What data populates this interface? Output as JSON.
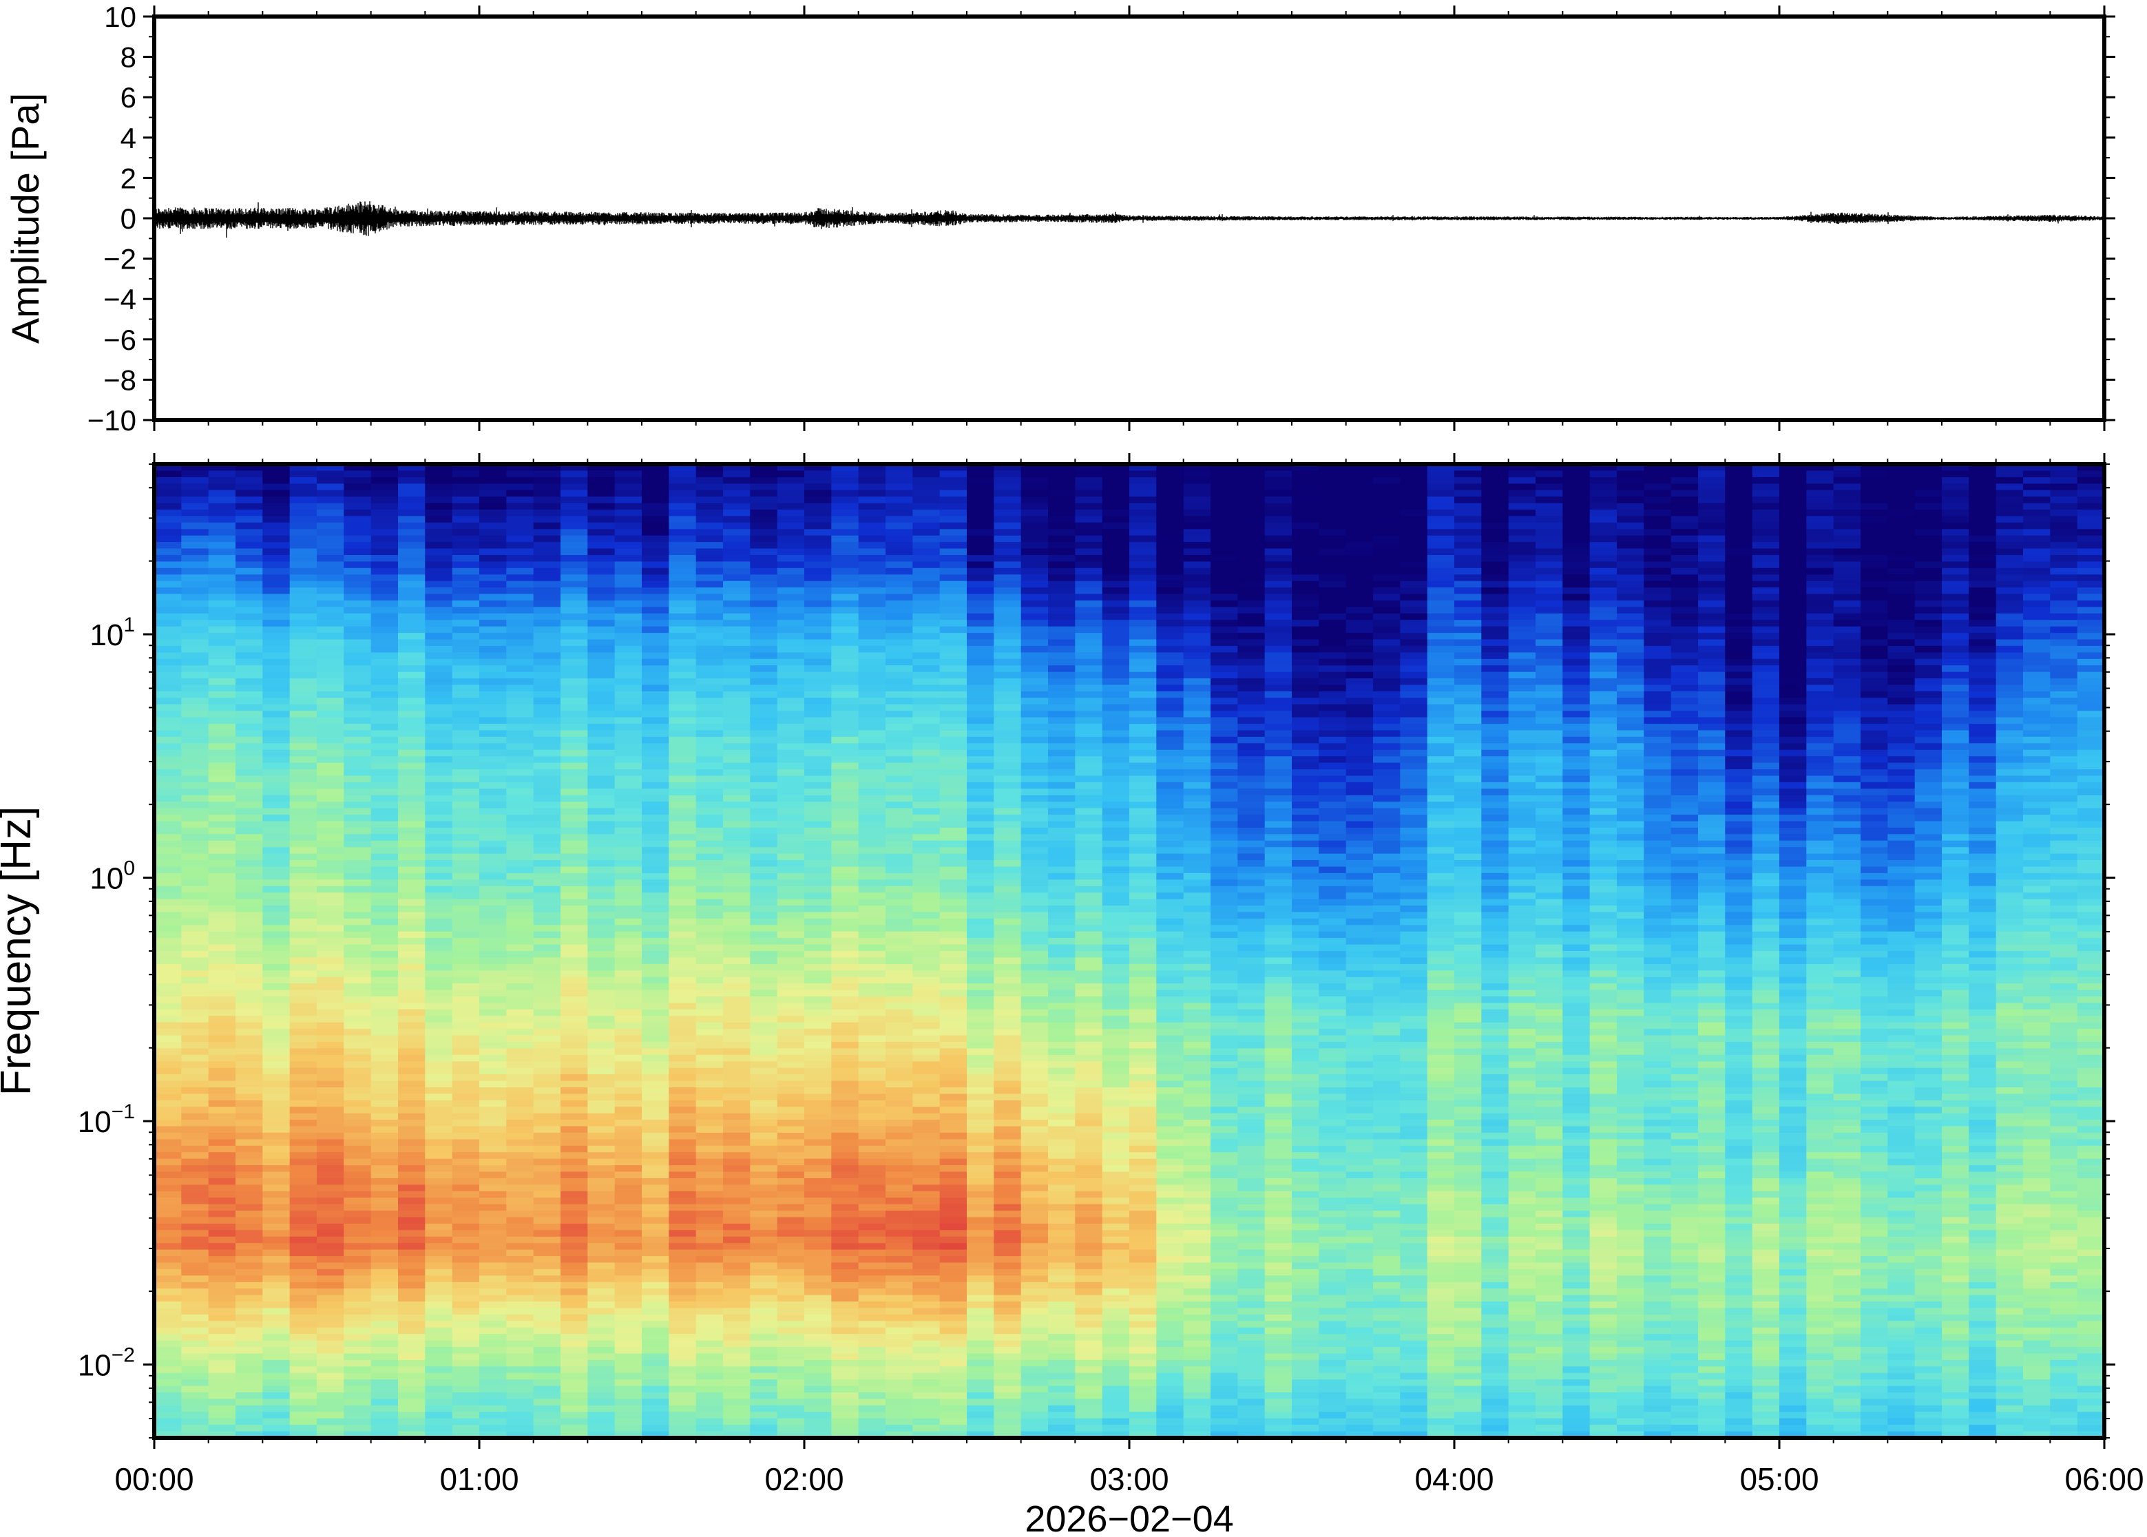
{
  "chart_data": [
    {
      "type": "line",
      "panel": "waveform",
      "ylabel": "Amplitude [Pa]",
      "ylim": [
        -10,
        10
      ],
      "yticks": [
        "10",
        "8",
        "6",
        "4",
        "2",
        "0",
        "−2",
        "−4",
        "−6",
        "−8",
        "−10"
      ],
      "ytick_values": [
        10,
        8,
        6,
        4,
        2,
        0,
        -2,
        -4,
        -6,
        -8,
        -10
      ],
      "xlim_hours": [
        0,
        6
      ],
      "series": [
        {
          "x_hours": [
            0,
            0.25,
            0.5,
            0.66,
            0.75,
            1.0,
            1.25,
            1.5,
            1.75,
            2.0,
            2.05,
            2.25,
            2.45,
            2.5,
            2.75,
            2.95,
            3.0,
            3.25,
            3.5,
            4.0,
            4.5,
            5.0,
            5.18,
            5.5,
            5.85,
            6.0
          ],
          "envelope": [
            0.45,
            0.45,
            0.42,
            0.75,
            0.35,
            0.3,
            0.28,
            0.25,
            0.22,
            0.25,
            0.45,
            0.2,
            0.35,
            0.18,
            0.15,
            0.2,
            0.12,
            0.1,
            0.08,
            0.08,
            0.07,
            0.06,
            0.25,
            0.06,
            0.15,
            0.08
          ]
        }
      ],
      "grid": false
    },
    {
      "type": "heatmap",
      "panel": "spectrogram",
      "ylabel": "Frequency [Hz]",
      "xlabel": "2026−02−04",
      "yscale": "log",
      "ylim": [
        0.005,
        50
      ],
      "yticks": [
        {
          "base": "10",
          "exp": "1",
          "value": 10
        },
        {
          "base": "10",
          "exp": "0",
          "value": 1
        },
        {
          "base": "10",
          "exp": "−1",
          "value": 0.1
        },
        {
          "base": "10",
          "exp": "−2",
          "value": 0.01
        }
      ],
      "xticks": [
        "00:00",
        "01:00",
        "02:00",
        "03:00",
        "04:00",
        "05:00",
        "06:00"
      ],
      "xtick_values_hours": [
        0,
        1,
        2,
        3,
        4,
        5,
        6
      ],
      "xlim_hours": [
        0,
        6
      ],
      "colormap": [
        "#0b0074",
        "#0f2fd0",
        "#1f8ef0",
        "#38c4f2",
        "#61e3df",
        "#a6f29a",
        "#e9f291",
        "#f6c864",
        "#f08a44",
        "#e2473b"
      ],
      "time_hours": [
        0,
        0.5,
        1,
        1.5,
        2,
        2.5,
        2.75,
        3,
        3.25,
        3.5,
        3.75,
        4,
        4.25,
        4.5,
        4.75,
        5,
        5.25,
        5.5,
        5.75,
        6
      ],
      "log_frequency_hz": [
        -2.3,
        -2,
        -1.5,
        -1.2,
        -1,
        -0.6,
        0,
        0.5,
        1,
        1.3,
        1.7
      ],
      "levels": [
        [
          0.45,
          0.45,
          0.45,
          0.45,
          0.45,
          0.45,
          0.42,
          0.4,
          0.38,
          0.38,
          0.38,
          0.38,
          0.38,
          0.38,
          0.38,
          0.38,
          0.38,
          0.38,
          0.38,
          0.38
        ],
        [
          0.58,
          0.58,
          0.57,
          0.57,
          0.57,
          0.58,
          0.57,
          0.6,
          0.5,
          0.5,
          0.48,
          0.5,
          0.48,
          0.48,
          0.46,
          0.48,
          0.48,
          0.47,
          0.47,
          0.48
        ],
        [
          0.9,
          0.92,
          0.9,
          0.88,
          0.9,
          0.92,
          0.88,
          0.82,
          0.6,
          0.55,
          0.55,
          0.56,
          0.56,
          0.58,
          0.55,
          0.56,
          0.56,
          0.56,
          0.56,
          0.6
        ],
        [
          0.88,
          0.87,
          0.86,
          0.84,
          0.86,
          0.84,
          0.8,
          0.74,
          0.55,
          0.5,
          0.5,
          0.5,
          0.5,
          0.5,
          0.48,
          0.48,
          0.5,
          0.48,
          0.5,
          0.52
        ],
        [
          0.8,
          0.79,
          0.78,
          0.77,
          0.78,
          0.76,
          0.74,
          0.7,
          0.52,
          0.48,
          0.46,
          0.47,
          0.47,
          0.47,
          0.45,
          0.45,
          0.46,
          0.46,
          0.47,
          0.48
        ],
        [
          0.7,
          0.68,
          0.67,
          0.66,
          0.67,
          0.64,
          0.6,
          0.58,
          0.5,
          0.5,
          0.48,
          0.5,
          0.5,
          0.5,
          0.48,
          0.48,
          0.48,
          0.48,
          0.5,
          0.52
        ],
        [
          0.55,
          0.52,
          0.5,
          0.48,
          0.48,
          0.45,
          0.42,
          0.4,
          0.3,
          0.22,
          0.24,
          0.32,
          0.3,
          0.32,
          0.22,
          0.28,
          0.22,
          0.3,
          0.34,
          0.4
        ],
        [
          0.5,
          0.47,
          0.44,
          0.42,
          0.42,
          0.4,
          0.34,
          0.32,
          0.22,
          0.12,
          0.14,
          0.28,
          0.26,
          0.26,
          0.14,
          0.12,
          0.1,
          0.18,
          0.24,
          0.32
        ],
        [
          0.36,
          0.33,
          0.3,
          0.28,
          0.28,
          0.26,
          0.2,
          0.18,
          0.1,
          0.04,
          0.04,
          0.14,
          0.12,
          0.12,
          0.04,
          0.02,
          0.02,
          0.06,
          0.1,
          0.18
        ],
        [
          0.2,
          0.14,
          0.13,
          0.12,
          0.12,
          0.08,
          0.04,
          0.03,
          0.02,
          0.01,
          0.01,
          0.05,
          0.04,
          0.04,
          0.01,
          0.01,
          0.01,
          0.02,
          0.04,
          0.08
        ],
        [
          0.02,
          0.01,
          0.01,
          0.01,
          0.01,
          0.01,
          0.01,
          0.01,
          0.0,
          0.0,
          0.0,
          0.0,
          0.0,
          0.0,
          0.0,
          0.0,
          0.0,
          0.0,
          0.0,
          0.0
        ]
      ],
      "grid": false
    }
  ]
}
